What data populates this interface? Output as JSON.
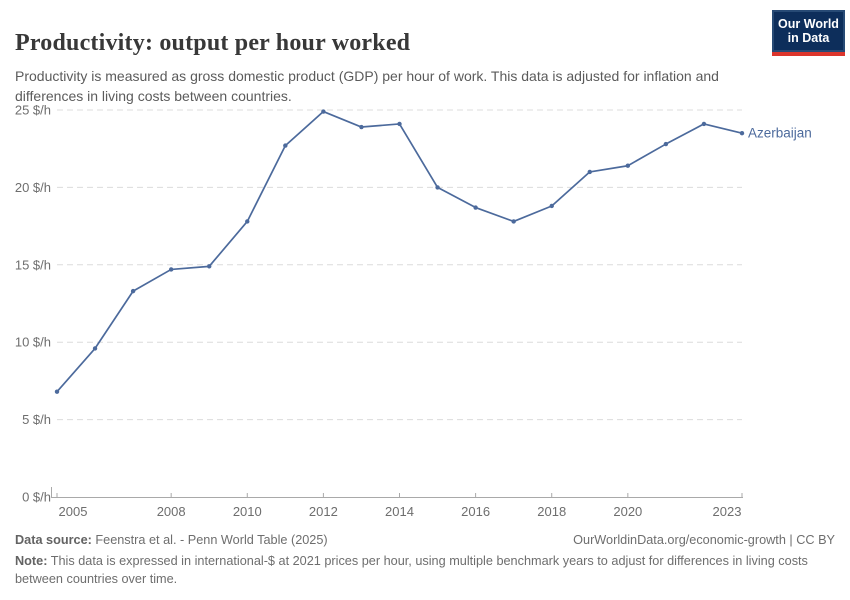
{
  "header": {
    "title": "Productivity: output per hour worked",
    "subtitle": "Productivity is measured as gross domestic product (GDP) per hour of work. This data is adjusted for inflation and differences in living costs between countries.",
    "logo": {
      "line1": "Our World",
      "line2": "in Data"
    }
  },
  "chart_data": {
    "type": "line",
    "title": "Productivity: output per hour worked",
    "xlabel": "",
    "ylabel": "",
    "x": [
      2005,
      2006,
      2007,
      2008,
      2009,
      2010,
      2011,
      2012,
      2013,
      2014,
      2015,
      2016,
      2017,
      2018,
      2019,
      2020,
      2021,
      2022,
      2023
    ],
    "series": [
      {
        "name": "Azerbaijan",
        "values": [
          6.8,
          9.6,
          13.3,
          14.7,
          14.9,
          17.8,
          22.7,
          24.9,
          23.9,
          24.1,
          20.0,
          18.7,
          17.8,
          18.8,
          21.0,
          21.4,
          22.8,
          24.1,
          23.5
        ]
      }
    ],
    "xlim": [
      2005,
      2023
    ],
    "ylim": [
      0,
      25
    ],
    "x_ticks": [
      2005,
      2008,
      2010,
      2012,
      2014,
      2016,
      2018,
      2020,
      2023
    ],
    "y_ticks": [
      0,
      5,
      10,
      15,
      20,
      25
    ],
    "y_tick_format": "{v} $/h",
    "grid": "horizontal-dashed",
    "legend_position": "end-of-line-label"
  },
  "footer": {
    "datasource_label": "Data source:",
    "datasource_text": "Feenstra et al. - Penn World Table (2025)",
    "link_text": "OurWorldinData.org/economic-growth | CC BY",
    "note_label": "Note:",
    "note_text": "This data is expressed in international-$ at 2021 prices per hour, using multiple benchmark years to adjust for differences in living costs between countries over time."
  },
  "colors": {
    "line": "#4C6A9C",
    "title": "#383838",
    "subtitle": "#5b5b5b",
    "axis_text": "#6e6e6e",
    "gridline": "#dcdcdc",
    "axis_line": "#a9a9a9",
    "logo_bg": "#0d2e5b",
    "logo_red": "#dc352c"
  }
}
